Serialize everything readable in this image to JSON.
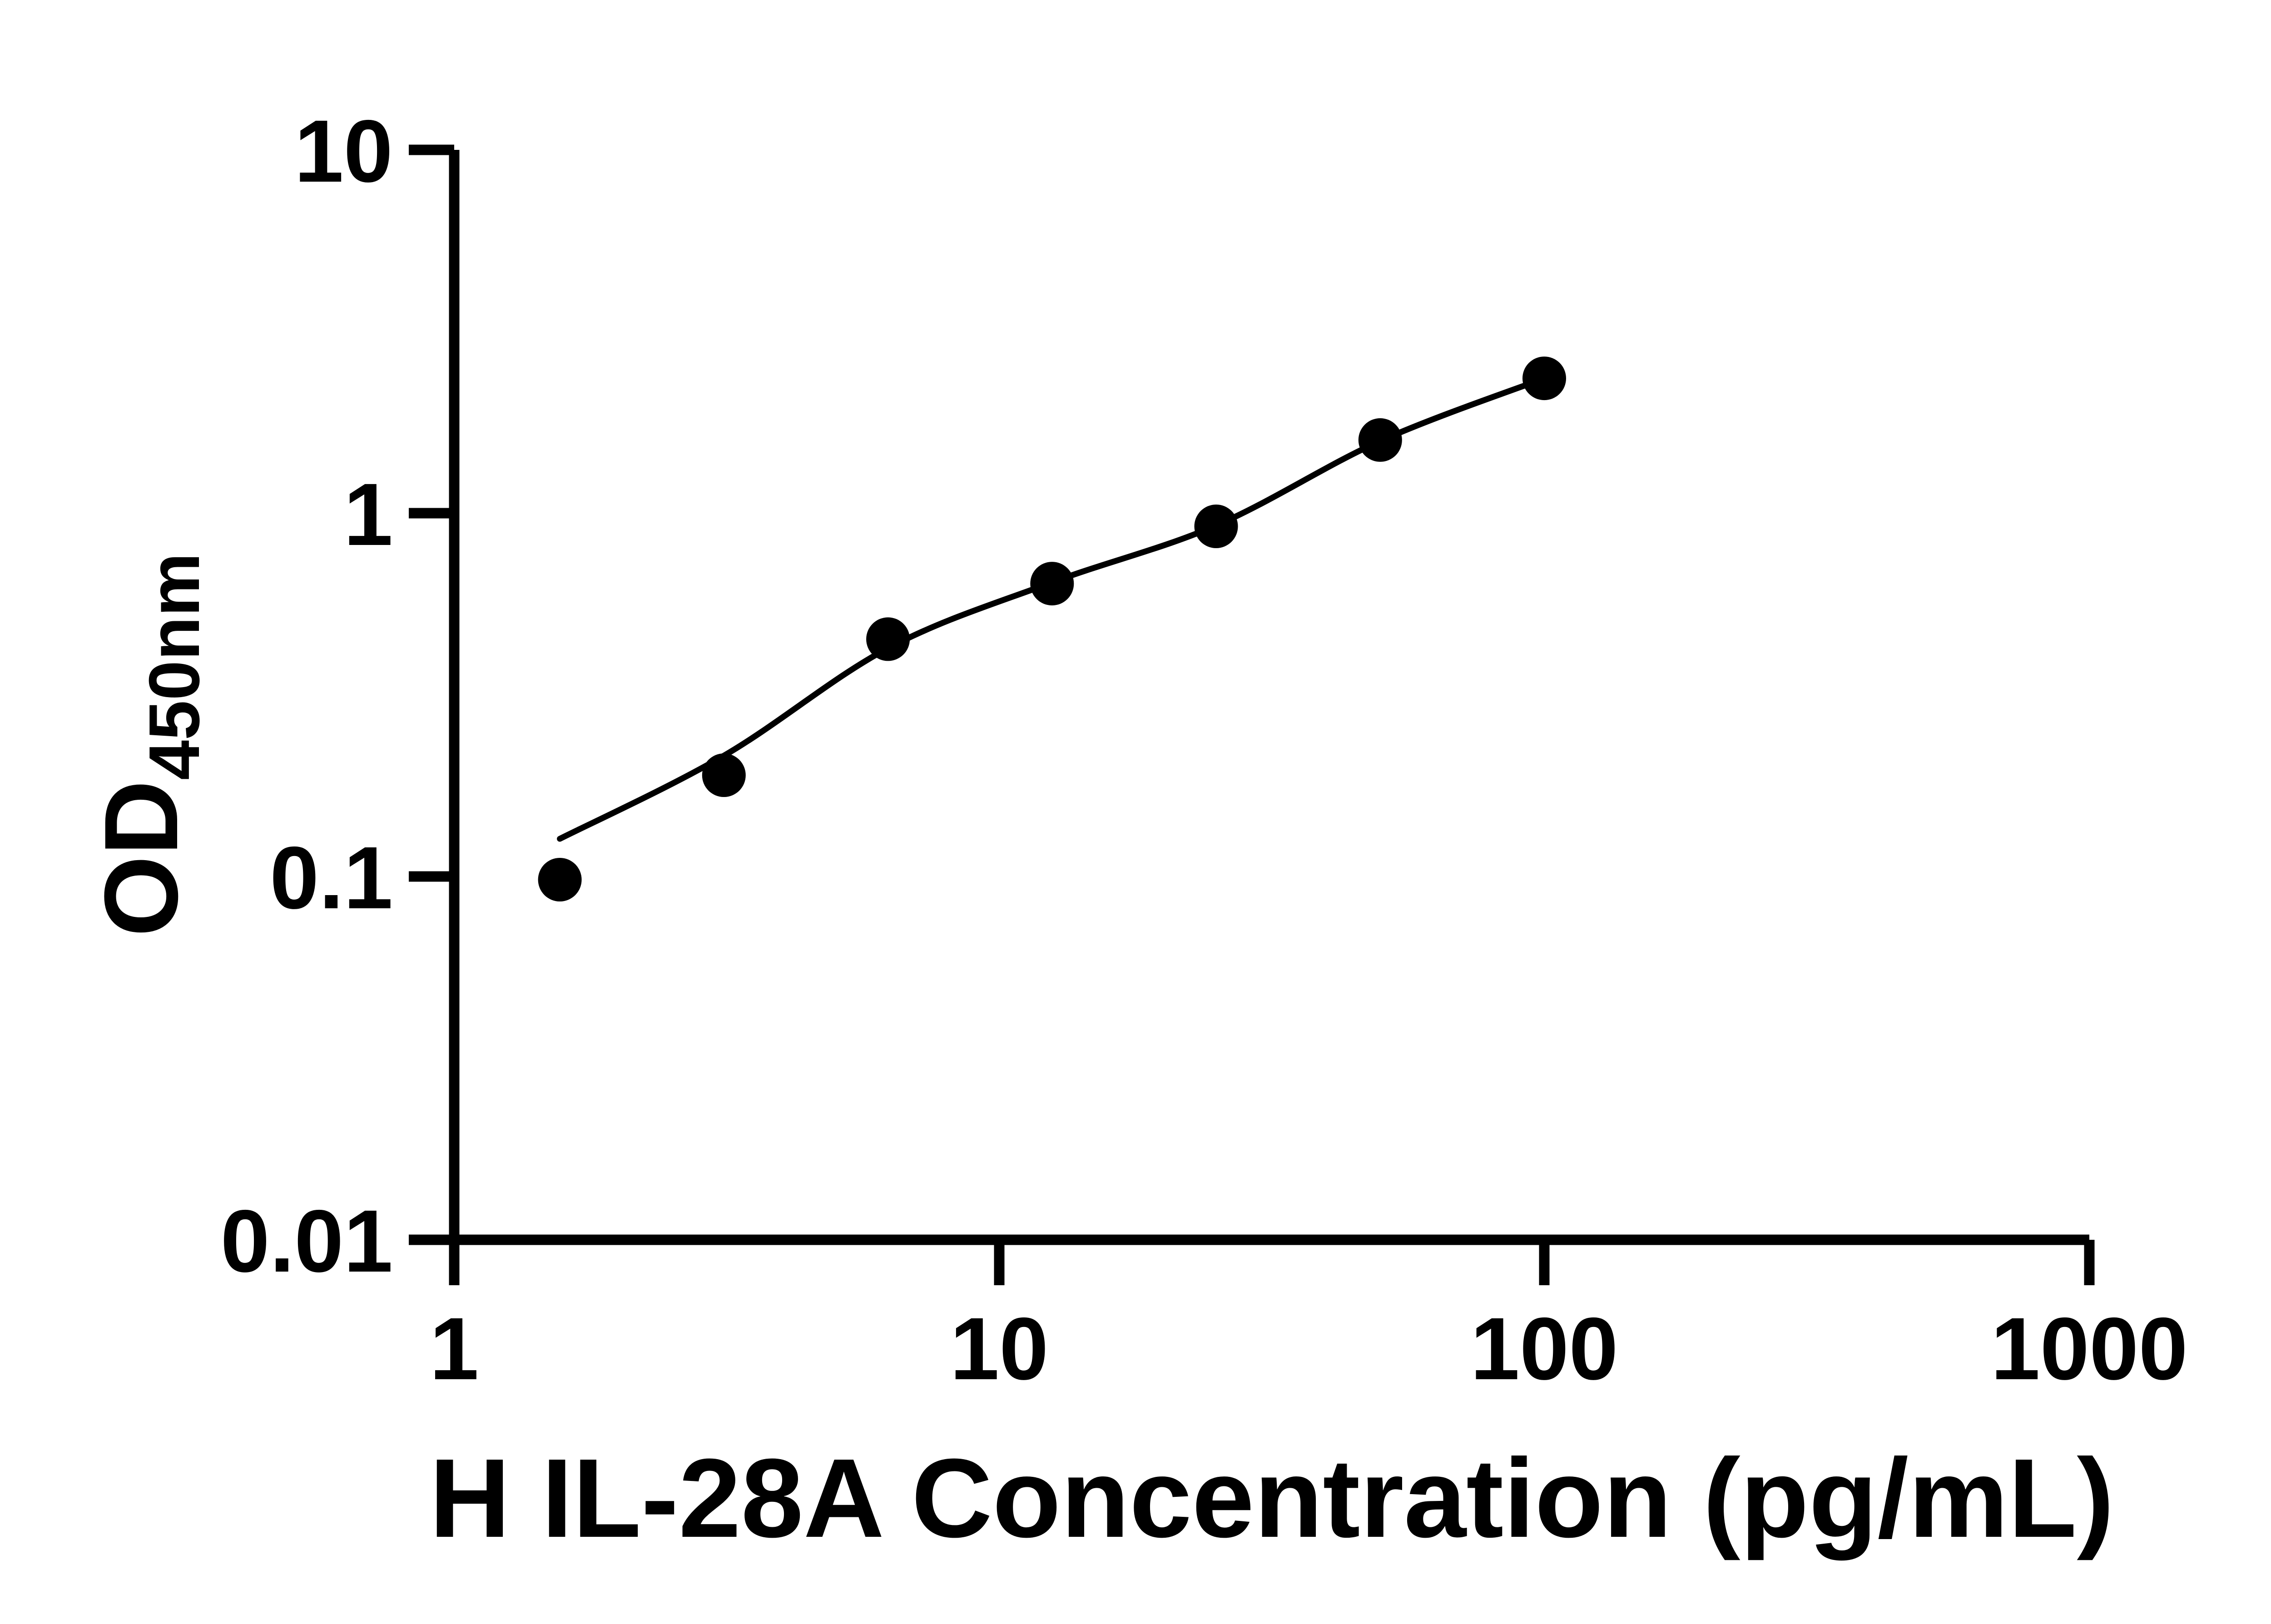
{
  "chart_data": {
    "type": "scatter",
    "title": "",
    "xlabel": "H IL-28A Concentration (pg/mL)",
    "ylabel_main": "OD",
    "ylabel_sub": "450nm",
    "x_scale": "log",
    "y_scale": "log",
    "xlim": [
      1,
      1000
    ],
    "ylim": [
      0.01,
      10
    ],
    "x_tick_values": [
      1,
      10,
      100,
      1000
    ],
    "x_tick_labels": [
      "1",
      "10",
      "100",
      "1000"
    ],
    "y_tick_values": [
      10,
      1,
      0.1,
      0.01
    ],
    "y_tick_labels": [
      "10",
      "1",
      "0.1",
      "0.01"
    ],
    "grid": false,
    "legend": false,
    "colors": {
      "points": "#000000",
      "curve": "#000000",
      "axes": "#000000",
      "text": "#000000",
      "background": "#ffffff"
    },
    "points": [
      [
        1.5625,
        0.098
      ],
      [
        3.125,
        0.19
      ],
      [
        6.25,
        0.45
      ],
      [
        12.5,
        0.64
      ],
      [
        25,
        0.92
      ],
      [
        50,
        1.59
      ],
      [
        100,
        2.35
      ]
    ],
    "fit_curve": [
      [
        1.5625,
        0.127
      ],
      [
        3.125,
        0.215
      ],
      [
        6.25,
        0.425
      ],
      [
        12.5,
        0.645
      ],
      [
        25,
        0.925
      ],
      [
        50,
        1.58
      ],
      [
        100,
        2.35
      ]
    ]
  }
}
